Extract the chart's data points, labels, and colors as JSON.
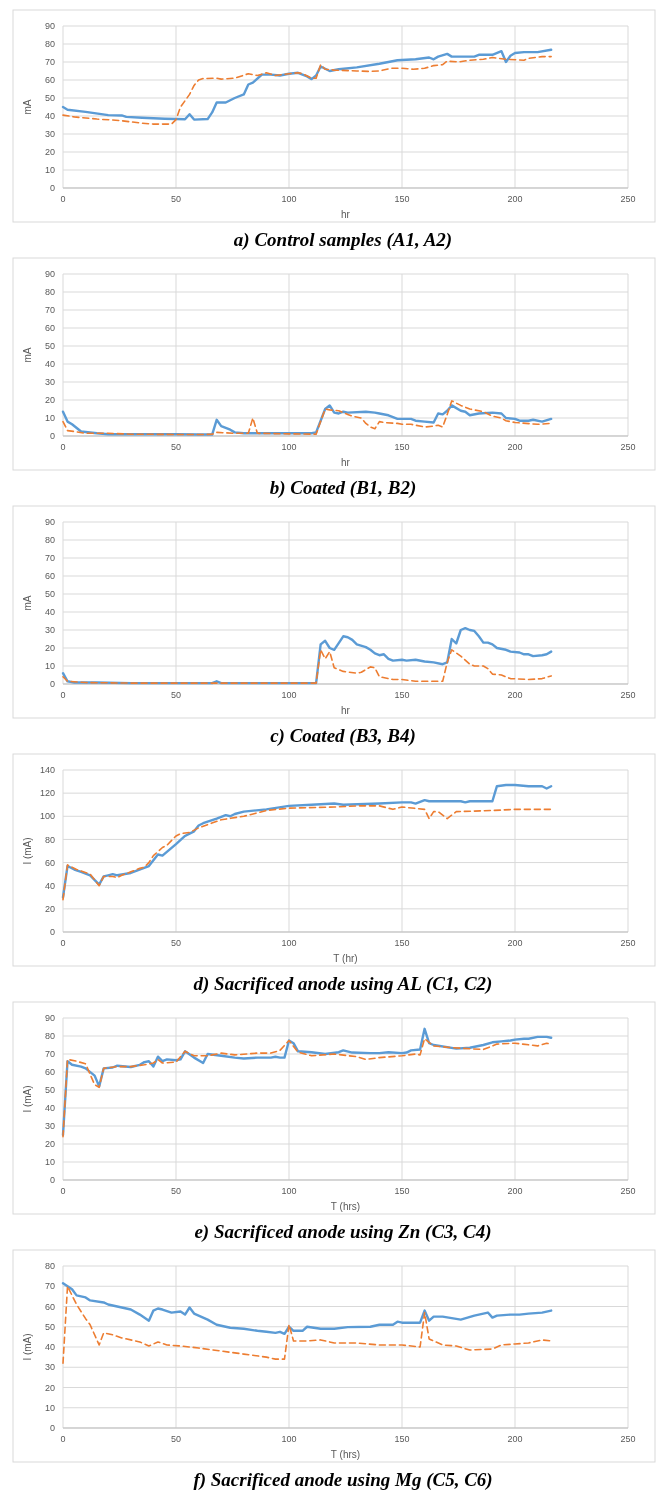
{
  "chart_data": [
    {
      "type": "line",
      "title": "a) Control samples (A1, A2)",
      "xlabel": "hr",
      "ylabel": "mA",
      "xlim": [
        0,
        250
      ],
      "xticks": [
        0,
        50,
        100,
        150,
        200,
        250
      ],
      "ylim": [
        0,
        90
      ],
      "yticks": [
        0,
        10,
        20,
        30,
        40,
        50,
        60,
        70,
        80,
        90
      ],
      "grid": true,
      "series": [
        {
          "color": "#5b9bd5",
          "line_style": "solid",
          "x": [
            0,
            2,
            10,
            20,
            26,
            28,
            35,
            45,
            50,
            54,
            56,
            58,
            64,
            66,
            68,
            72,
            76,
            80,
            82,
            84,
            88,
            92,
            96,
            100,
            104,
            108,
            110,
            112,
            114,
            118,
            122,
            130,
            140,
            148,
            156,
            162,
            164,
            166,
            170,
            172,
            180,
            182,
            184,
            190,
            194,
            196,
            198,
            200,
            204,
            210,
            216
          ],
          "values": [
            45,
            43.5,
            42.3,
            40.5,
            40.3,
            39.5,
            39,
            38.5,
            38.3,
            38.2,
            41,
            38,
            38.3,
            42,
            47.5,
            47.5,
            50,
            52,
            57.5,
            58.5,
            63,
            63,
            62.5,
            63.5,
            64,
            62,
            60.5,
            62.5,
            67.5,
            65,
            66,
            67,
            69,
            71,
            71.5,
            72.5,
            71.5,
            73,
            74.5,
            73,
            73,
            73,
            74,
            74,
            76,
            70,
            73.5,
            75,
            75.5,
            75.5,
            76.8
          ]
        },
        {
          "color": "#ed7d31",
          "line_style": "dashed",
          "x": [
            0,
            5,
            15,
            25,
            35,
            40,
            48,
            50,
            52,
            56,
            58,
            60,
            62,
            68,
            70,
            76,
            82,
            86,
            90,
            94,
            100,
            104,
            106,
            110,
            112,
            114,
            116,
            120,
            130,
            135,
            140,
            145,
            150,
            155,
            160,
            164,
            168,
            170,
            175,
            180,
            186,
            190,
            196,
            204,
            206,
            212,
            216
          ],
          "values": [
            40.5,
            39.5,
            38.3,
            37.5,
            36,
            35.5,
            35.5,
            38,
            45,
            52,
            57,
            60,
            60.8,
            61,
            60.5,
            61,
            63.5,
            62.5,
            64,
            62.5,
            63.5,
            64,
            63.5,
            61,
            61,
            68.5,
            66,
            65.5,
            65,
            64.8,
            65,
            66.5,
            66.5,
            66,
            66.5,
            68,
            68.5,
            70.5,
            70,
            71,
            71.5,
            72.5,
            71.5,
            71,
            72,
            73,
            73
          ]
        }
      ]
    },
    {
      "type": "line",
      "title": "b) Coated (B1, B2)",
      "xlabel": "hr",
      "ylabel": "mA",
      "xlim": [
        0,
        250
      ],
      "xticks": [
        0,
        50,
        100,
        150,
        200,
        250
      ],
      "ylim": [
        0,
        90
      ],
      "yticks": [
        0,
        10,
        20,
        30,
        40,
        50,
        60,
        70,
        80,
        90
      ],
      "grid": true,
      "series": [
        {
          "color": "#5b9bd5",
          "line_style": "solid",
          "x": [
            0,
            2,
            4,
            8,
            15,
            20,
            30,
            50,
            60,
            66,
            68,
            70,
            74,
            76,
            80,
            100,
            110,
            112,
            114,
            116,
            118,
            120,
            122,
            124,
            126,
            134,
            138,
            140,
            144,
            148,
            150,
            154,
            156,
            160,
            164,
            166,
            168,
            170,
            172,
            176,
            178,
            180,
            184,
            190,
            194,
            196,
            200,
            202,
            206,
            208,
            212,
            216
          ],
          "values": [
            13.5,
            8,
            6.5,
            2.5,
            1.5,
            1,
            1,
            1,
            0.8,
            0.8,
            9,
            5.5,
            3.5,
            2,
            1.5,
            1.5,
            1.5,
            2,
            8.5,
            15,
            17,
            13,
            12.5,
            13.5,
            13,
            13.5,
            13,
            12.5,
            11.5,
            9.5,
            9.5,
            9.5,
            8.5,
            8,
            7.5,
            12.5,
            12,
            14,
            17,
            14,
            13.5,
            11.5,
            12.5,
            13,
            12.5,
            10,
            9.5,
            8.5,
            8.5,
            9,
            8,
            9.5
          ]
        },
        {
          "color": "#ed7d31",
          "line_style": "dashed",
          "x": [
            0,
            2,
            5,
            10,
            20,
            30,
            60,
            66,
            68,
            76,
            82,
            84,
            86,
            100,
            112,
            114,
            116,
            118,
            122,
            126,
            128,
            132,
            134,
            136,
            138,
            140,
            142,
            148,
            150,
            154,
            160,
            164,
            166,
            168,
            170,
            172,
            176,
            180,
            186,
            190,
            194,
            196,
            200,
            210,
            216
          ],
          "values": [
            8,
            3,
            2.5,
            1.5,
            1.5,
            1,
            0.8,
            1,
            2,
            1.5,
            1.5,
            10,
            1.5,
            1.2,
            1,
            8,
            15,
            14.5,
            14,
            12,
            11,
            10,
            7,
            5,
            4,
            8,
            7.5,
            7,
            6.5,
            6.5,
            5,
            5.5,
            6,
            5,
            12,
            19.5,
            17,
            15,
            13.5,
            11,
            10,
            8.5,
            7.5,
            6.5,
            7
          ]
        }
      ]
    },
    {
      "type": "line",
      "title": "c) Coated (B3, B4)",
      "xlabel": "hr",
      "ylabel": "mA",
      "xlim": [
        0,
        250
      ],
      "xticks": [
        0,
        50,
        100,
        150,
        200,
        250
      ],
      "ylim": [
        0,
        90
      ],
      "yticks": [
        0,
        10,
        20,
        30,
        40,
        50,
        60,
        70,
        80,
        90
      ],
      "grid": true,
      "series": [
        {
          "color": "#5b9bd5",
          "line_style": "solid",
          "x": [
            0,
            2,
            5,
            15,
            30,
            66,
            68,
            70,
            110,
            112,
            114,
            116,
            118,
            120,
            124,
            126,
            128,
            130,
            134,
            136,
            138,
            140,
            142,
            144,
            146,
            150,
            152,
            156,
            160,
            164,
            168,
            170,
            172,
            174,
            176,
            178,
            180,
            182,
            184,
            186,
            188,
            190,
            192,
            196,
            198,
            202,
            204,
            206,
            208,
            212,
            214,
            216
          ],
          "values": [
            6,
            1.5,
            0.8,
            0.8,
            0.5,
            0.5,
            1.5,
            0.5,
            0.5,
            0.5,
            22,
            24,
            20,
            19,
            26.5,
            26,
            24.5,
            22,
            20.5,
            19,
            17,
            16,
            16.5,
            14,
            13,
            13.5,
            13,
            13.5,
            12.5,
            12,
            11,
            12,
            25,
            22.5,
            30,
            31,
            30,
            29.5,
            26.5,
            23,
            23,
            22,
            20,
            19,
            18,
            17.5,
            16.5,
            16.5,
            15.5,
            16,
            16.5,
            18
          ]
        },
        {
          "color": "#ed7d31",
          "line_style": "dashed",
          "x": [
            0,
            2,
            10,
            30,
            112,
            114,
            116,
            118,
            120,
            124,
            130,
            132,
            136,
            138,
            140,
            146,
            150,
            156,
            160,
            168,
            170,
            172,
            176,
            180,
            182,
            186,
            188,
            190,
            194,
            198,
            206,
            212,
            216
          ],
          "values": [
            4,
            1.5,
            0.8,
            0.5,
            0.5,
            19,
            14,
            18,
            9,
            7,
            6,
            6.5,
            9.5,
            9,
            4,
            2.5,
            2.5,
            1.5,
            1.5,
            1.5,
            12,
            19,
            15.5,
            11,
            10,
            10,
            8.5,
            5.5,
            5,
            3,
            2.5,
            3,
            4.5
          ]
        }
      ]
    },
    {
      "type": "line",
      "title": "d) Sacrificed anode using AL (C1, C2)",
      "xlabel": "T (hr)",
      "ylabel": "I (mA)",
      "xlim": [
        0,
        250
      ],
      "xticks": [
        0,
        50,
        100,
        150,
        200,
        250
      ],
      "ylim": [
        0,
        140
      ],
      "yticks": [
        0,
        20,
        40,
        60,
        80,
        100,
        120,
        140
      ],
      "grid": true,
      "series": [
        {
          "color": "#5b9bd5",
          "line_style": "solid",
          "x": [
            0,
            2,
            5,
            8,
            12,
            16,
            18,
            20,
            22,
            24,
            30,
            38,
            42,
            44,
            50,
            54,
            56,
            58,
            60,
            62,
            68,
            72,
            74,
            76,
            80,
            90,
            100,
            110,
            120,
            124,
            140,
            150,
            154,
            156,
            160,
            162,
            176,
            178,
            180,
            190,
            192,
            196,
            200,
            206,
            212,
            214,
            216
          ],
          "values": [
            30,
            57,
            54,
            52,
            49,
            41,
            48,
            49,
            50,
            49,
            51,
            57,
            67,
            66,
            76,
            83,
            85,
            87,
            92,
            94,
            98,
            101,
            100,
            102,
            104,
            106,
            109,
            110,
            111,
            110,
            111,
            112,
            112,
            111,
            114,
            113,
            113,
            112,
            113,
            113,
            126,
            127,
            127,
            126,
            126,
            124,
            126
          ]
        },
        {
          "color": "#ed7d31",
          "line_style": "dashed",
          "x": [
            0,
            2,
            6,
            12,
            16,
            18,
            22,
            24,
            26,
            30,
            34,
            36,
            38,
            40,
            44,
            46,
            50,
            52,
            56,
            60,
            70,
            80,
            86,
            90,
            100,
            120,
            130,
            140,
            146,
            150,
            160,
            162,
            164,
            166,
            170,
            174,
            190,
            200,
            216
          ],
          "values": [
            28,
            58,
            54,
            50,
            40,
            48,
            48,
            47,
            49,
            52,
            55,
            56,
            60,
            66,
            73,
            75,
            83,
            85,
            86,
            90,
            97,
            100,
            103,
            105,
            107,
            108,
            109,
            109,
            106,
            108,
            106,
            98,
            104,
            104,
            98,
            104,
            105,
            106,
            106
          ]
        }
      ]
    },
    {
      "type": "line",
      "title": "e) Sacrificed anode using Zn (C3, C4)",
      "xlabel": "T (hrs)",
      "ylabel": "I (mA)",
      "xlim": [
        0,
        250
      ],
      "xticks": [
        0,
        50,
        100,
        150,
        200,
        250
      ],
      "ylim": [
        0,
        90
      ],
      "yticks": [
        0,
        10,
        20,
        30,
        40,
        50,
        60,
        70,
        80,
        90
      ],
      "grid": true,
      "series": [
        {
          "color": "#5b9bd5",
          "line_style": "solid",
          "x": [
            0,
            2,
            4,
            8,
            10,
            14,
            16,
            18,
            22,
            24,
            30,
            34,
            36,
            38,
            40,
            42,
            44,
            46,
            50,
            52,
            54,
            58,
            62,
            64,
            70,
            76,
            80,
            86,
            92,
            94,
            96,
            98,
            100,
            102,
            104,
            110,
            116,
            122,
            124,
            128,
            136,
            140,
            144,
            150,
            152,
            154,
            158,
            160,
            162,
            164,
            174,
            180,
            186,
            190,
            194,
            198,
            200,
            204,
            206,
            210,
            214,
            216
          ],
          "values": [
            25,
            66,
            64,
            63,
            62,
            58,
            52,
            62,
            62.5,
            63.5,
            62.8,
            64,
            65.5,
            66,
            63,
            68.5,
            66,
            67,
            66.5,
            67,
            71.5,
            68,
            65,
            70,
            69,
            68,
            67.5,
            68,
            68,
            68.5,
            68,
            68,
            77.5,
            76,
            71.5,
            71,
            70,
            71,
            72,
            70.8,
            70.5,
            70.5,
            71,
            70.5,
            70.8,
            72,
            72.5,
            84,
            76,
            75,
            73,
            73.5,
            75,
            76.5,
            77,
            77.5,
            78,
            78.5,
            78.5,
            79.5,
            79.5,
            79
          ]
        },
        {
          "color": "#ed7d31",
          "line_style": "dashed",
          "x": [
            0,
            2,
            6,
            10,
            14,
            16,
            18,
            24,
            30,
            36,
            40,
            42,
            44,
            50,
            54,
            58,
            64,
            70,
            76,
            86,
            92,
            96,
            100,
            104,
            110,
            120,
            130,
            134,
            140,
            150,
            156,
            158,
            160,
            164,
            172,
            186,
            192,
            200,
            210,
            214,
            216
          ],
          "values": [
            24,
            67,
            66,
            64.5,
            53,
            51.5,
            62,
            63,
            63,
            64,
            65,
            67,
            65,
            65.5,
            71.5,
            69,
            69,
            70.5,
            69.5,
            70.5,
            70.5,
            72,
            77.5,
            71,
            69,
            70,
            68.5,
            67,
            68,
            69,
            70,
            69.5,
            78.5,
            74.5,
            73.5,
            72.5,
            75.5,
            76,
            74.5,
            76,
            75.5
          ]
        }
      ]
    },
    {
      "type": "line",
      "title": "f) Sacrificed anode using Mg (C5, C6)",
      "xlabel": "T (hrs)",
      "ylabel": "I (mA)",
      "xlim": [
        0,
        250
      ],
      "xticks": [
        0,
        50,
        100,
        150,
        200,
        250
      ],
      "ylim": [
        0,
        80
      ],
      "yticks": [
        0,
        10,
        20,
        30,
        40,
        50,
        60,
        70,
        80
      ],
      "grid": true,
      "series": [
        {
          "color": "#5b9bd5",
          "line_style": "solid",
          "x": [
            0,
            2,
            4,
            6,
            10,
            12,
            18,
            20,
            24,
            30,
            34,
            38,
            40,
            42,
            44,
            48,
            52,
            54,
            56,
            58,
            62,
            64,
            68,
            74,
            80,
            86,
            90,
            94,
            96,
            98,
            100,
            102,
            106,
            108,
            114,
            120,
            126,
            136,
            140,
            146,
            148,
            150,
            158,
            160,
            162,
            164,
            168,
            176,
            182,
            186,
            188,
            190,
            192,
            198,
            202,
            206,
            212,
            216
          ],
          "values": [
            71.5,
            70,
            68.5,
            65.5,
            64.5,
            63,
            62,
            61,
            60,
            58.5,
            56,
            53,
            58,
            59,
            58.5,
            57,
            57.5,
            56,
            59.5,
            56.5,
            54.5,
            53.5,
            51,
            49.5,
            49,
            48,
            47.5,
            47,
            47.5,
            46.5,
            50,
            48,
            48,
            50,
            49,
            49,
            49.8,
            50,
            51,
            51,
            52.5,
            52,
            52,
            58,
            53,
            55,
            55,
            53.5,
            55.5,
            56.5,
            57,
            54.5,
            55.5,
            56,
            56,
            56.5,
            57,
            58
          ]
        },
        {
          "color": "#ed7d31",
          "line_style": "dashed",
          "x": [
            0,
            2,
            6,
            10,
            12,
            16,
            18,
            22,
            26,
            34,
            38,
            42,
            46,
            52,
            60,
            70,
            80,
            90,
            94,
            98,
            100,
            102,
            108,
            114,
            120,
            130,
            140,
            150,
            158,
            160,
            162,
            168,
            174,
            180,
            190,
            194,
            200,
            206,
            212,
            216
          ],
          "values": [
            32,
            70,
            61,
            54,
            51,
            41,
            47,
            46,
            44.5,
            42.5,
            40.5,
            42.5,
            41,
            40.5,
            39.5,
            38,
            36.5,
            35,
            34,
            34,
            51,
            43,
            43,
            43.5,
            42,
            42,
            41,
            41,
            40,
            57,
            44,
            41,
            40.5,
            38.5,
            39,
            41,
            41.5,
            42,
            43.5,
            43
          ]
        }
      ]
    }
  ]
}
